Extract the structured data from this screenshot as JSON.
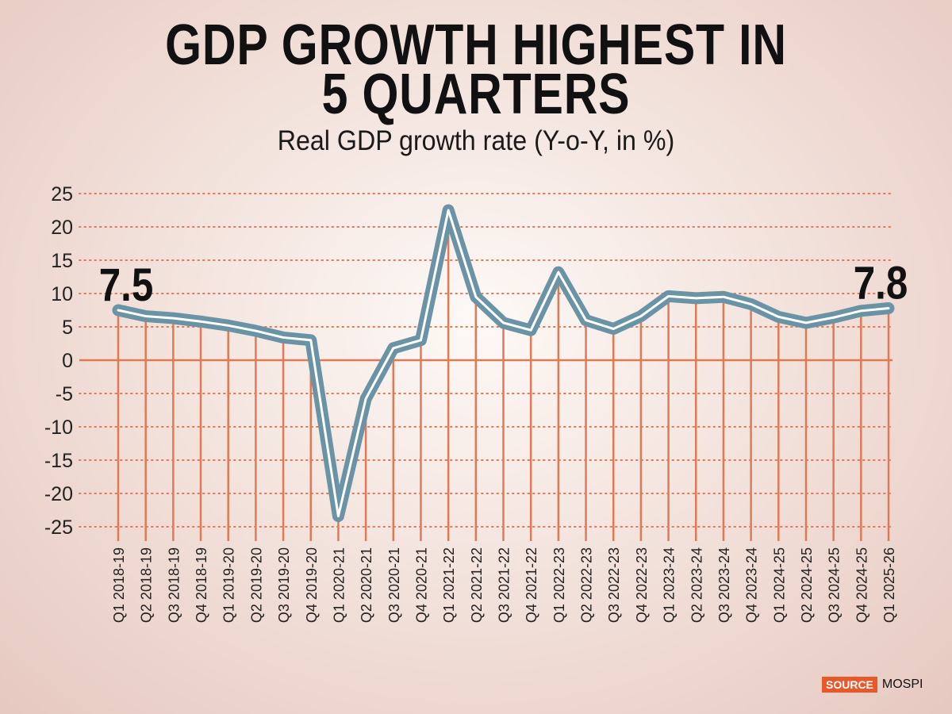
{
  "title_line1": "GDP GROWTH HIGHEST IN",
  "title_line2": "5 QUARTERS",
  "subtitle": "Real GDP growth rate (Y-o-Y, in %)",
  "source_label": "SOURCE",
  "source_name": "MOSPI",
  "colors": {
    "line": "#6a94a6",
    "grid": "#e07a55",
    "badge": "#e8582a"
  },
  "chart_data": {
    "type": "line",
    "title": "GDP GROWTH HIGHEST IN 5 QUARTERS",
    "subtitle": "Real GDP growth rate (Y-o-Y, in %)",
    "ylim": [
      -25,
      25
    ],
    "yticks": [
      25,
      20,
      15,
      10,
      5,
      0,
      -5,
      -10,
      -15,
      -20,
      -25
    ],
    "grid": true,
    "categories": [
      "Q1 2018-19",
      "Q2 2018-19",
      "Q3 2018-19",
      "Q4 2018-19",
      "Q1 2019-20",
      "Q2 2019-20",
      "Q3 2019-20",
      "Q4 2019-20",
      "Q1 2020-21",
      "Q2 2020-21",
      "Q3 2020-21",
      "Q4 2020-21",
      "Q1 2021-22",
      "Q2 2021-22",
      "Q3 2021-22",
      "Q4 2021-22",
      "Q1 2022-23",
      "Q2 2022-23",
      "Q3 2022-23",
      "Q4 2022-23",
      "Q1 2023-24",
      "Q2 2023-24",
      "Q3 2023-24",
      "Q4 2023-24",
      "Q1 2024-25",
      "Q2 2024-25",
      "Q3 2024-25",
      "Q4 2024-25",
      "Q1 2025-26"
    ],
    "values": [
      7.5,
      6.6,
      6.3,
      5.8,
      5.2,
      4.4,
      3.4,
      3.0,
      -23.4,
      -5.8,
      1.8,
      3.0,
      22.5,
      9.5,
      5.6,
      4.5,
      13.2,
      6.0,
      4.7,
      6.6,
      9.6,
      9.3,
      9.5,
      8.4,
      6.5,
      5.6,
      6.4,
      7.4,
      7.8
    ],
    "annotations": [
      {
        "category": "Q1 2018-19",
        "label": "7.5"
      },
      {
        "category": "Q1 2025-26",
        "label": "7.8"
      }
    ]
  }
}
